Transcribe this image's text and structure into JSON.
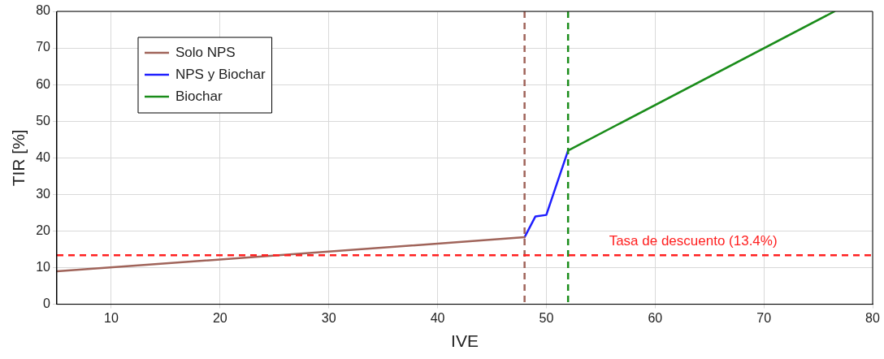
{
  "chart_data": {
    "type": "line",
    "xlabel": "IVE",
    "ylabel": "TIR [%]",
    "series": [
      {
        "name": "Solo NPS",
        "color": "#a0645a",
        "x": [
          5,
          48
        ],
        "values": [
          9,
          18.3
        ]
      },
      {
        "name": "NPS y Biochar",
        "color": "#1f1fff",
        "x": [
          48,
          49,
          50,
          51,
          52
        ],
        "values": [
          18.3,
          24,
          24.4,
          33.2,
          42
        ]
      },
      {
        "name": "Biochar",
        "color": "#1a8c1a",
        "x": [
          52,
          76.5
        ],
        "values": [
          42,
          80
        ]
      }
    ],
    "xlim": [
      5,
      80
    ],
    "xticks": [
      10,
      20,
      30,
      40,
      50,
      60,
      70,
      80
    ],
    "ylim": [
      0,
      80
    ],
    "yticks": [
      0,
      10,
      20,
      30,
      40,
      50,
      60,
      70,
      80
    ],
    "ref_lines": [
      {
        "axis": "x",
        "value": 48,
        "color": "#a0645a",
        "line_style": "dashed"
      },
      {
        "axis": "x",
        "value": 52,
        "color": "#1a8c1a",
        "line_style": "dashed"
      },
      {
        "axis": "y",
        "value": 13.4,
        "color": "#ff2020",
        "line_style": "dashed",
        "label": "Tasa de descuento (13.4%)"
      }
    ],
    "grid": true,
    "legend": "top left",
    "marker": "none",
    "line_style": "solid"
  }
}
